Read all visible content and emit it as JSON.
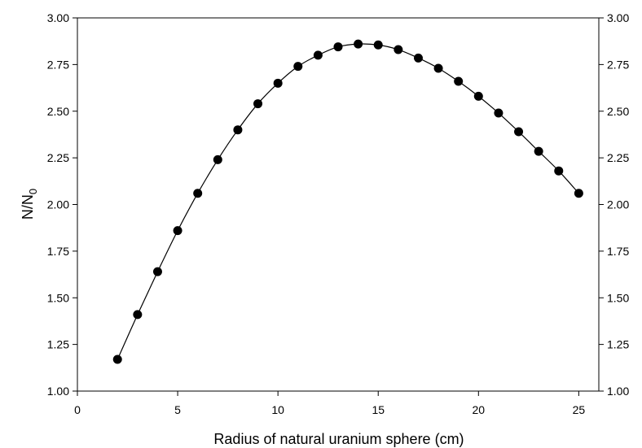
{
  "chart_data": {
    "type": "line",
    "title": "",
    "xlabel": "Radius of natural uranium sphere (cm)",
    "ylabel_main": "N/N",
    "ylabel_sub": "0",
    "xlim": [
      0,
      26
    ],
    "ylim": [
      1.0,
      3.0
    ],
    "xticks": [
      0,
      5,
      10,
      15,
      20,
      25
    ],
    "yticks": [
      1.0,
      1.25,
      1.5,
      1.75,
      2.0,
      2.25,
      2.5,
      2.75,
      3.0
    ],
    "ytick_labels": [
      "1.00",
      "1.25",
      "1.50",
      "1.75",
      "2.00",
      "2.25",
      "2.50",
      "2.75",
      "3.00"
    ],
    "right_axis_mirrors_left": true,
    "grid": false,
    "marker": "filled-circle",
    "series": [
      {
        "x": [
          2,
          3,
          4,
          5,
          6,
          7,
          8,
          9,
          10,
          11,
          12,
          13,
          14,
          15,
          16,
          17,
          18,
          19,
          20,
          21,
          22,
          23,
          24,
          25
        ],
        "y": [
          1.17,
          1.41,
          1.64,
          1.86,
          2.06,
          2.24,
          2.4,
          2.54,
          2.65,
          2.74,
          2.8,
          2.845,
          2.86,
          2.855,
          2.83,
          2.785,
          2.73,
          2.66,
          2.58,
          2.49,
          2.39,
          2.285,
          2.18,
          2.06
        ]
      }
    ]
  }
}
